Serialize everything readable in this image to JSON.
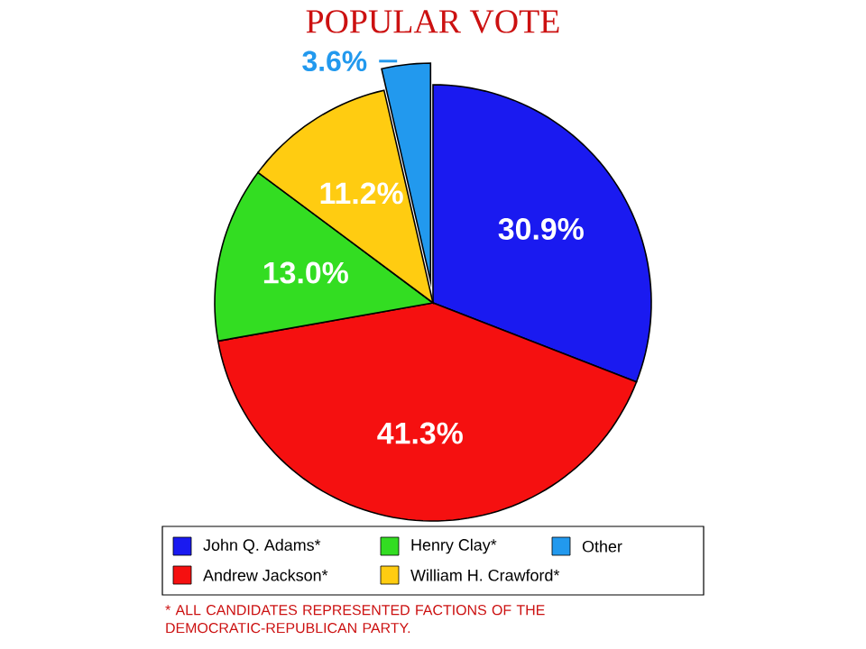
{
  "chart_data": {
    "type": "pie",
    "title": "POPULAR VOTE",
    "categories": [
      "John Q. Adams*",
      "Andrew Jackson*",
      "Henry Clay*",
      "William H. Crawford*",
      "Other"
    ],
    "values": [
      30.9,
      41.3,
      13.0,
      11.2,
      3.6
    ],
    "colors": [
      "#1a1af0",
      "#f51010",
      "#33dd22",
      "#ffcc11",
      "#2299ee"
    ],
    "value_labels": [
      "30.9%",
      "41.3%",
      "13.0%",
      "11.2%",
      "3.6%"
    ],
    "legend": "bottom",
    "annotations": [
      "* ALL CANDIDATES REPRESENTED FACTIONS OF THE DEMOCRATIC-REPUBLICAN PARTY."
    ]
  }
}
